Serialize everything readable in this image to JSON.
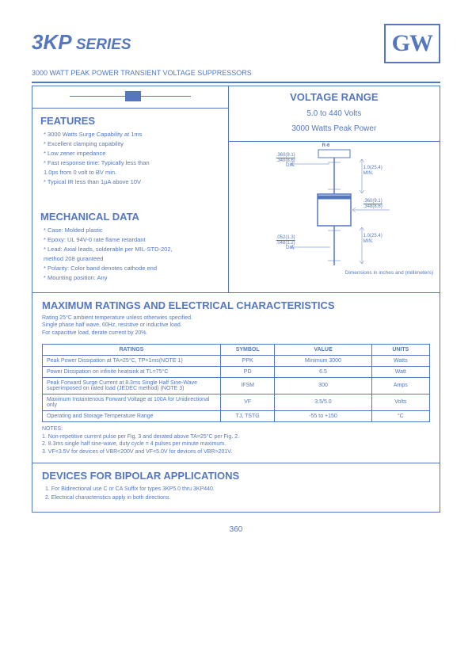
{
  "header": {
    "title_main": "3KP",
    "title_sub": " SERIES",
    "subtitle": "3000 WATT PEAK POWER TRANSIENT VOLTAGE SUPPRESSORS",
    "logo": "GW"
  },
  "features": {
    "title": "FEATURES",
    "items": [
      "* 3000 Watts Surge Capability at 1ms",
      "* Excellent clamping capability",
      "* Low zener impedance",
      "* Fast response time: Typically less than",
      "   1.0ps from 0 volt to BV min.",
      "* Typical IR less than 1µA above 10V"
    ]
  },
  "mechanical": {
    "title": "MECHANICAL DATA",
    "items": [
      "* Case: Molded plastic",
      "* Epoxy: UL 94V-0 rate flame retardant",
      "* Lead: Axial leads, solderable per MIL-STD-202,",
      "   method 208 guranteed",
      "* Polarity: Color band denotes cathode end",
      "* Mounting position: Any"
    ]
  },
  "voltage_range": {
    "title": "VOLTAGE RANGE",
    "line1": "5.0 to 440 Volts",
    "line2": "3000 Watts Peak Power"
  },
  "drawing": {
    "part": "R-6",
    "dia1": ".360(9.1)",
    "dia1b": ".340(8.6)",
    "dia_label": "DIA.",
    "len1": "1.0(25.4)",
    "min": "MIN.",
    "body1": ".360(9.1)",
    "body1b": ".348(8.6)",
    "lead1": ".052(1.3)",
    "lead1b": ".048(1.2)",
    "caption": "Dimensions in inches and (millimeters)"
  },
  "ratings": {
    "title": "MAXIMUM RATINGS AND ELECTRICAL CHARACTERISTICS",
    "desc": [
      "Rating 25°C ambient temperature unless otherwies specified.",
      "Single phase half wave, 60Hz, resistive or inductive load.",
      "For capacitive load, derate current by 20%."
    ],
    "headers": [
      "RATINGS",
      "SYMBOL",
      "VALUE",
      "UNITS"
    ],
    "rows": [
      [
        "Peak Power Dissipation at TA=25°C, TP=1ms(NOTE 1)",
        "PPK",
        "Minimum 3000",
        "Watts"
      ],
      [
        "Power Dissipation on infinite heatsink at TL=75°C",
        "PD",
        "6.5",
        "Watt"
      ],
      [
        "Peak Forward Surge Current at 8.3ms Single Half Sine-Wave superimposed on rated load (JEDEC method) (NOTE 3)",
        "IFSM",
        "300",
        "Amps"
      ],
      [
        "Maximum Instantenous Forward Voltage at 100A for Unidirectional only",
        "VF",
        "3.5/5.0",
        "Volts"
      ],
      [
        "Operating and Storage Temperature Range",
        "TJ, TSTG",
        "-55 to +150",
        "°C"
      ]
    ],
    "notes_title": "NOTES:",
    "notes": [
      "1. Non-repetitive current pulse per Fig. 3 and derated above TA=25°C per Fig. 2.",
      "2. 8.3ms single half sine-wave, duty cycle = 4 pulses per minute maximum.",
      "3. VF<3.5V for devices of VBR<200V and VF<5.0V for devices of VBR>201V."
    ]
  },
  "bipolar": {
    "title": "DEVICES FOR BIPOLAR APPLICATIONS",
    "items": [
      "1. For Bidirectional use C or CA Suffix for types 3KP5.0 thru 3KP440.",
      "2. Electrical characteristics apply in both directions."
    ]
  },
  "page_number": "360",
  "colors": {
    "primary": "#5577c0"
  }
}
